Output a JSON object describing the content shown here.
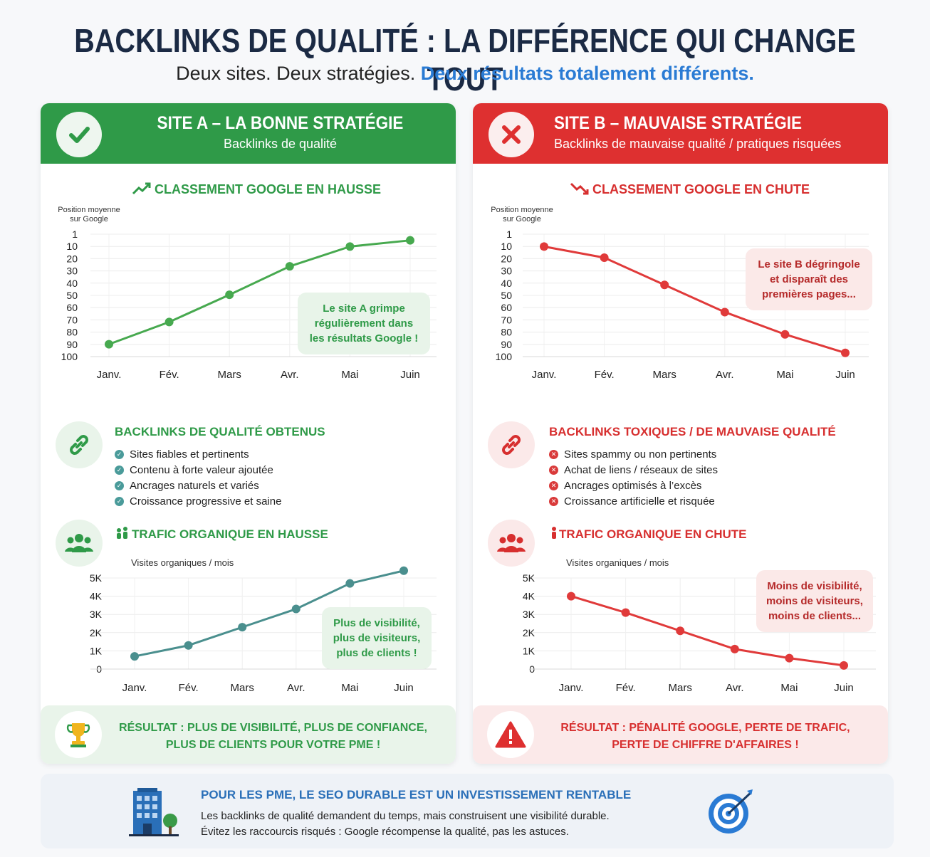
{
  "title": "BACKLINKS DE QUALITÉ : LA DIFFÉRENCE QUI CHANGE TOUT",
  "subtitle_plain": "Deux sites. Deux stratégies.",
  "subtitle_highlight": "Deux résultats totalement différents.",
  "colors": {
    "green": "#2f9a48",
    "red": "#de3030",
    "teal": "#4a8f8e",
    "navy": "#1b2a44",
    "blue": "#2a7bd4"
  },
  "site_a": {
    "title": "SITE A – LA BONNE STRATÉGIE",
    "subtitle": "Backlinks de qualité",
    "icon": "check-icon",
    "ranking_title": "CLASSEMENT GOOGLE EN HAUSSE",
    "ranking_axis_note_1": "Position moyenne",
    "ranking_axis_note_2": "sur Google",
    "ranking_bubble_1": "Le site A grimpe",
    "ranking_bubble_2": "régulièrement dans",
    "ranking_bubble_3": "les résultats Google !",
    "backlinks_title": "BACKLINKS DE QUALITÉ OBTENUS",
    "backlinks": [
      "Sites fiables et pertinents",
      "Contenu à forte valeur ajoutée",
      "Ancrages naturels et variés",
      "Croissance progressive et saine"
    ],
    "traffic_title": "TRAFIC ORGANIQUE EN HAUSSE",
    "traffic_axis_note": "Visites organiques / mois",
    "traffic_bubble_1": "Plus de visibilité,",
    "traffic_bubble_2": "plus de visiteurs,",
    "traffic_bubble_3": "plus de clients !",
    "result_line_1": "RÉSULTAT : PLUS DE VISIBILITÉ, PLUS DE CONFIANCE,",
    "result_line_2": "PLUS DE CLIENTS POUR VOTRE PME !"
  },
  "site_b": {
    "title": "SITE B – MAUVAISE STRATÉGIE",
    "subtitle": "Backlinks de mauvaise qualité / pratiques risquées",
    "icon": "close-icon",
    "ranking_title": "CLASSEMENT GOOGLE EN CHUTE",
    "ranking_axis_note_1": "Position moyenne",
    "ranking_axis_note_2": "sur Google",
    "ranking_bubble_1": "Le site B dégringole",
    "ranking_bubble_2": "et disparaît des",
    "ranking_bubble_3": "premières pages...",
    "backlinks_title": "BACKLINKS TOXIQUES / DE MAUVAISE QUALITÉ",
    "backlinks": [
      "Sites spammy ou non pertinents",
      "Achat de liens / réseaux de sites",
      "Ancrages optimisés à l’excès",
      "Croissance artificielle et risquée"
    ],
    "traffic_title": "TRAFIC ORGANIQUE EN CHUTE",
    "traffic_axis_note": "Visites organiques / mois",
    "traffic_bubble_1": "Moins de visibilité,",
    "traffic_bubble_2": "moins de visiteurs,",
    "traffic_bubble_3": "moins de clients...",
    "result_line_1": "RÉSULTAT : PÉNALITÉ GOOGLE, PERTE DE TRAFIC,",
    "result_line_2": "PERTE DE CHIFFRE D'AFFAIRES !"
  },
  "bottom": {
    "title": "POUR LES PME, LE SEO DURABLE EST UN INVESTISSEMENT RENTABLE",
    "line_1": "Les backlinks de qualité demandent du temps, mais construisent une visibilité durable.",
    "line_2": "Évitez les raccourcis risqués : Google récompense la qualité, pas les astuces."
  },
  "chart_data": [
    {
      "type": "line",
      "id": "rankA",
      "categories": [
        "Janv.",
        "Fév.",
        "Mars",
        "Avr.",
        "Mai",
        "Juin"
      ],
      "values": [
        90,
        72,
        50,
        27,
        11,
        6
      ],
      "yticks": [
        "1",
        "10",
        "20",
        "30",
        "40",
        "50",
        "60",
        "70",
        "80",
        "90",
        "100"
      ],
      "ylim": [
        1,
        100
      ],
      "y_inverted": true,
      "color": "#47a94f"
    },
    {
      "type": "line",
      "id": "rankB",
      "categories": [
        "Janv.",
        "Fév.",
        "Mars",
        "Avr.",
        "Mai",
        "Juin"
      ],
      "values": [
        11,
        20,
        42,
        64,
        82,
        97
      ],
      "yticks": [
        "1",
        "10",
        "20",
        "30",
        "40",
        "50",
        "60",
        "70",
        "80",
        "90",
        "100"
      ],
      "ylim": [
        1,
        100
      ],
      "y_inverted": true,
      "color": "#e03a3a"
    },
    {
      "type": "line",
      "id": "trafA",
      "categories": [
        "Janv.",
        "Fév.",
        "Mars",
        "Avr.",
        "Mai",
        "Juin"
      ],
      "values": [
        0.7,
        1.3,
        2.3,
        3.3,
        4.7,
        5.4
      ],
      "yticks": [
        "0",
        "1K",
        "2K",
        "3K",
        "4K",
        "5K"
      ],
      "ylim": [
        0,
        5
      ],
      "y_inverted": false,
      "color": "#4a8f8e"
    },
    {
      "type": "line",
      "id": "trafB",
      "categories": [
        "Janv.",
        "Fév.",
        "Mars",
        "Avr.",
        "Mai",
        "Juin"
      ],
      "values": [
        4.0,
        3.1,
        2.1,
        1.1,
        0.6,
        0.2
      ],
      "yticks": [
        "0",
        "1K",
        "2K",
        "3K",
        "4K",
        "5K"
      ],
      "ylim": [
        0,
        5
      ],
      "y_inverted": false,
      "color": "#e03a3a"
    }
  ]
}
